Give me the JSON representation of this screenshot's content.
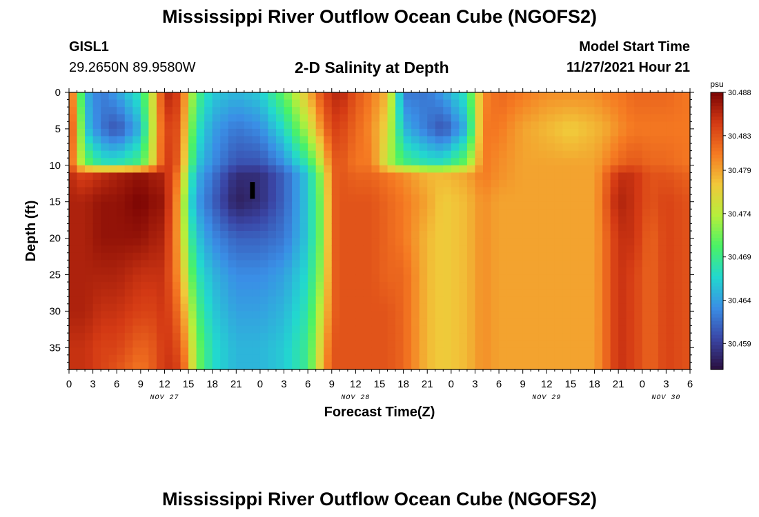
{
  "header": {
    "title": "Mississippi River Outflow Ocean Cube (NGOFS2)",
    "station_id": "GISL1",
    "station_coords": "29.2650N  89.9580W",
    "subtitle": "2-D Salinity at Depth",
    "model_start_label": "Model Start Time",
    "model_start_value": "11/27/2021 Hour 21"
  },
  "footer": {
    "title": "Mississippi River Outflow Ocean Cube (NGOFS2)"
  },
  "chart_data": {
    "type": "heatmap",
    "title": "2-D Salinity at Depth",
    "xlabel": "Forecast Time(Z)",
    "ylabel": "Depth (ft)",
    "x_tick_labels": [
      "0",
      "3",
      "6",
      "9",
      "12",
      "15",
      "18",
      "21",
      "0",
      "3",
      "6",
      "9",
      "12",
      "15",
      "18",
      "21",
      "0",
      "3",
      "6",
      "9",
      "12",
      "15",
      "18",
      "21",
      "0",
      "3",
      "6"
    ],
    "x_date_labels": [
      {
        "label": "NOV 27",
        "hour": 12
      },
      {
        "label": "NOV 28",
        "hour": 36
      },
      {
        "label": "NOV 29",
        "hour": 60
      },
      {
        "label": "NOV 30",
        "hour": 75
      }
    ],
    "xlim_hours_from_nov27_00z": [
      0,
      78
    ],
    "y_ticks": [
      0,
      5,
      10,
      15,
      20,
      25,
      30,
      35
    ],
    "ylim": [
      0,
      38
    ],
    "y_inverted": true,
    "colorbar": {
      "unit": "psu",
      "ticks": [
        30.488,
        30.483,
        30.479,
        30.474,
        30.469,
        30.464,
        30.459
      ],
      "range": [
        30.456,
        30.488
      ],
      "colormap": [
        "#2a0f3f",
        "#3a46a6",
        "#3a8ee6",
        "#22d8cf",
        "#4af266",
        "#b6ef3c",
        "#f1c83a",
        "#f57a22",
        "#d43a14",
        "#7a0403"
      ]
    },
    "approx_values": {
      "note": "salinity (psu) by time (hours from Nov 27 00Z) and depth (ft)",
      "hours": [
        0,
        1,
        2,
        4,
        6,
        9,
        11,
        12,
        14,
        15,
        16,
        18,
        21,
        24,
        27,
        30,
        32,
        33,
        34,
        36,
        38,
        40,
        42,
        45,
        47,
        50,
        52,
        54,
        57,
        60,
        63,
        66,
        68,
        69,
        71,
        73,
        75,
        78
      ],
      "depths": [
        0,
        5,
        10,
        11,
        15,
        20,
        25,
        30,
        35,
        38
      ],
      "values": [
        [
          30.485,
          30.485,
          30.485,
          30.486,
          30.486,
          30.486,
          30.486,
          30.486,
          30.485,
          30.485
        ],
        [
          30.475,
          30.478,
          30.476,
          30.484,
          30.486,
          30.486,
          30.486,
          30.486,
          30.485,
          30.485
        ],
        [
          30.465,
          30.466,
          30.472,
          30.484,
          30.486,
          30.486,
          30.486,
          30.486,
          30.485,
          30.485
        ],
        [
          30.462,
          30.462,
          30.468,
          30.485,
          30.487,
          30.487,
          30.486,
          30.485,
          30.484,
          30.484
        ],
        [
          30.464,
          30.46,
          30.468,
          30.486,
          30.487,
          30.487,
          30.486,
          30.485,
          30.484,
          30.483
        ],
        [
          30.468,
          30.465,
          30.47,
          30.487,
          30.488,
          30.487,
          30.485,
          30.484,
          30.482,
          30.481
        ],
        [
          30.478,
          30.478,
          30.478,
          30.486,
          30.487,
          30.486,
          30.485,
          30.484,
          30.483,
          30.483
        ],
        [
          30.486,
          30.484,
          30.485,
          30.486,
          30.487,
          30.486,
          30.485,
          30.485,
          30.485,
          30.485
        ],
        [
          30.484,
          30.483,
          30.482,
          30.48,
          30.478,
          30.478,
          30.479,
          30.481,
          30.483,
          30.484
        ],
        [
          30.476,
          30.474,
          30.472,
          30.47,
          30.468,
          30.47,
          30.473,
          30.476,
          30.478,
          30.479
        ],
        [
          30.47,
          30.468,
          30.466,
          30.465,
          30.464,
          30.466,
          30.468,
          30.47,
          30.472,
          30.472
        ],
        [
          30.466,
          30.464,
          30.463,
          30.462,
          30.461,
          30.463,
          30.465,
          30.466,
          30.467,
          30.467
        ],
        [
          30.465,
          30.462,
          30.46,
          30.458,
          30.457,
          30.461,
          30.463,
          30.464,
          30.465,
          30.465
        ],
        [
          30.466,
          30.463,
          30.46,
          30.458,
          30.458,
          30.461,
          30.463,
          30.464,
          30.465,
          30.465
        ],
        [
          30.471,
          30.467,
          30.463,
          30.461,
          30.461,
          30.462,
          30.464,
          30.465,
          30.466,
          30.466
        ],
        [
          30.478,
          30.474,
          30.468,
          30.466,
          30.466,
          30.466,
          30.467,
          30.468,
          30.469,
          30.469
        ],
        [
          30.484,
          30.481,
          30.476,
          30.474,
          30.473,
          30.473,
          30.474,
          30.476,
          30.478,
          30.479
        ],
        [
          30.485,
          30.484,
          30.482,
          30.482,
          30.482,
          30.482,
          30.482,
          30.482,
          30.483,
          30.483
        ],
        [
          30.486,
          30.484,
          30.483,
          30.483,
          30.483,
          30.483,
          30.483,
          30.483,
          30.483,
          30.483
        ],
        [
          30.483,
          30.482,
          30.481,
          30.482,
          30.483,
          30.483,
          30.483,
          30.483,
          30.483,
          30.483
        ],
        [
          30.481,
          30.48,
          30.481,
          30.482,
          30.483,
          30.483,
          30.483,
          30.483,
          30.483,
          30.483
        ],
        [
          30.478,
          30.476,
          30.474,
          30.481,
          30.482,
          30.482,
          30.482,
          30.483,
          30.483,
          30.483
        ],
        [
          30.462,
          30.465,
          30.47,
          30.48,
          30.481,
          30.481,
          30.482,
          30.482,
          30.482,
          30.482
        ],
        [
          30.462,
          30.462,
          30.468,
          30.478,
          30.479,
          30.478,
          30.478,
          30.478,
          30.478,
          30.478
        ],
        [
          30.464,
          30.46,
          30.468,
          30.478,
          30.477,
          30.477,
          30.477,
          30.477,
          30.477,
          30.477
        ],
        [
          30.468,
          30.465,
          30.472,
          30.479,
          30.478,
          30.478,
          30.478,
          30.478,
          30.478,
          30.478
        ],
        [
          30.48,
          30.481,
          30.481,
          30.481,
          30.48,
          30.48,
          30.48,
          30.48,
          30.48,
          30.48
        ],
        [
          30.482,
          30.481,
          30.48,
          30.48,
          30.479,
          30.479,
          30.479,
          30.479,
          30.479,
          30.479
        ],
        [
          30.481,
          30.479,
          30.479,
          30.479,
          30.479,
          30.479,
          30.479,
          30.479,
          30.479,
          30.479
        ],
        [
          30.48,
          30.478,
          30.479,
          30.479,
          30.479,
          30.479,
          30.479,
          30.479,
          30.479,
          30.479
        ],
        [
          30.48,
          30.477,
          30.479,
          30.479,
          30.479,
          30.479,
          30.479,
          30.479,
          30.479,
          30.479
        ],
        [
          30.48,
          30.478,
          30.479,
          30.479,
          30.479,
          30.479,
          30.479,
          30.479,
          30.479,
          30.479
        ],
        [
          30.481,
          30.479,
          30.481,
          30.483,
          30.484,
          30.483,
          30.483,
          30.483,
          30.483,
          30.483
        ],
        [
          30.481,
          30.48,
          30.482,
          30.485,
          30.486,
          30.485,
          30.485,
          30.485,
          30.485,
          30.485
        ],
        [
          30.482,
          30.481,
          30.483,
          30.485,
          30.485,
          30.485,
          30.484,
          30.484,
          30.484,
          30.484
        ],
        [
          30.482,
          30.481,
          30.482,
          30.483,
          30.483,
          30.482,
          30.482,
          30.482,
          30.482,
          30.482
        ],
        [
          30.482,
          30.481,
          30.482,
          30.483,
          30.484,
          30.484,
          30.484,
          30.484,
          30.484,
          30.484
        ],
        [
          30.481,
          30.481,
          30.481,
          30.482,
          30.483,
          30.483,
          30.483,
          30.483,
          30.483,
          30.483
        ]
      ]
    }
  }
}
